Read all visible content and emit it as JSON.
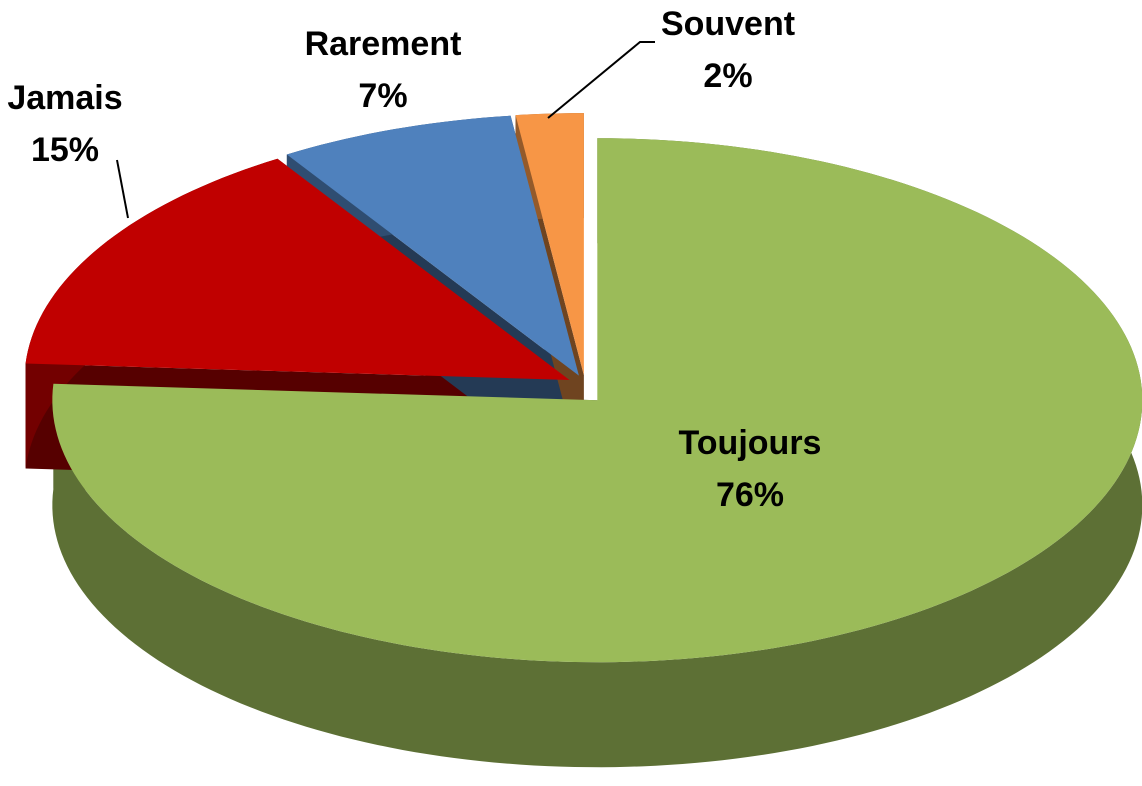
{
  "chart_data": {
    "type": "pie",
    "categories": [
      "Toujours",
      "Jamais",
      "Rarement",
      "Souvent"
    ],
    "values": [
      76,
      15,
      7,
      2
    ],
    "value_labels": [
      "76%",
      "15%",
      "7%",
      "2%"
    ],
    "colors": [
      "#9bbb59",
      "#c00000",
      "#4f81bd",
      "#f79646"
    ]
  }
}
